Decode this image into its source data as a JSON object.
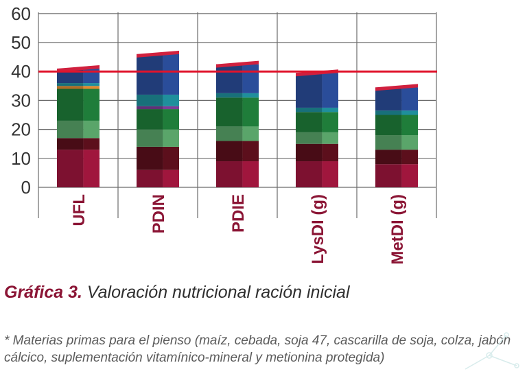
{
  "chart_data": {
    "type": "bar",
    "stacked": true,
    "categories": [
      "UFL",
      "PDIN",
      "PDIE",
      "LysDI (g)",
      "MetDI (g)"
    ],
    "ylim": [
      0,
      60
    ],
    "yticks": [
      "0",
      "10",
      "20",
      "30",
      "40",
      "50",
      "60"
    ],
    "grid": true,
    "reference_line": {
      "y": 40,
      "color": "#e0142c"
    },
    "series": [
      {
        "color": "#a0163d",
        "values": [
          13,
          6,
          9,
          9,
          8
        ]
      },
      {
        "color": "#5c0f1c",
        "values": [
          4,
          8,
          7,
          6,
          5
        ]
      },
      {
        "color": "#5aa56a",
        "values": [
          6,
          6,
          5,
          4,
          5
        ]
      },
      {
        "color": "#1f7d3a",
        "values": [
          11,
          7,
          10,
          7,
          7
        ]
      },
      {
        "color": "#7b3f97",
        "values": [
          0,
          1,
          0,
          0,
          0
        ]
      },
      {
        "color": "#e08a30",
        "values": [
          1,
          0,
          0,
          0,
          0
        ]
      },
      {
        "color": "#1f8f9c",
        "values": [
          1,
          4,
          1.5,
          1.5,
          1.5
        ]
      },
      {
        "color": "#2a4d9a",
        "values": [
          5,
          14,
          10,
          12,
          8
        ]
      }
    ],
    "top_cap_color": "#d0203e"
  },
  "caption": {
    "figure_label": "Gráfica 3.",
    "title": "Valoración nutricional ración inicial"
  },
  "note": "* Materias primas para el pienso (maíz, cebada, soja 47, cascarilla de soja, colza, jabón cálcico, suplementación vitamínico-mineral y metionina protegida)"
}
